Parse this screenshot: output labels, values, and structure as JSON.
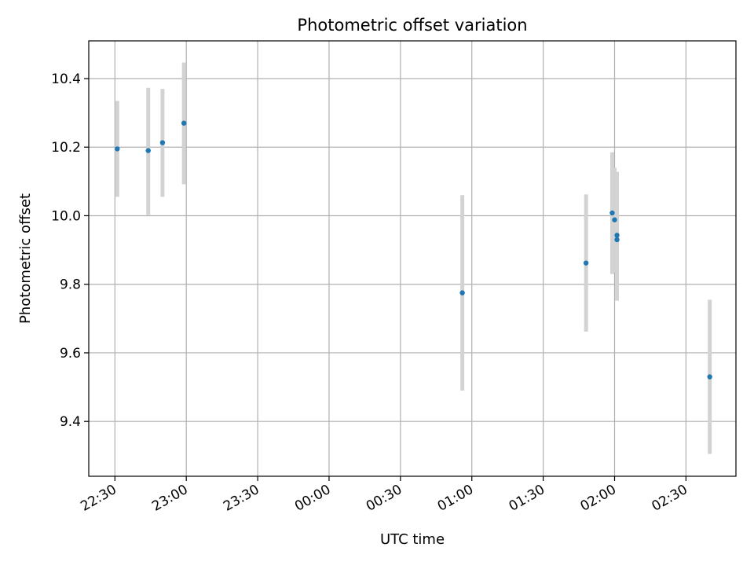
{
  "chart_data": {
    "type": "scatter",
    "title": "Photometric offset variation",
    "xlabel": "UTC time",
    "ylabel": "Photometric offset",
    "x_axis_kind": "time",
    "xlim": [
      "22:19",
      "02:51"
    ],
    "ylim": [
      9.24,
      10.51
    ],
    "grid": true,
    "x_ticks": [
      "22:30",
      "23:00",
      "23:30",
      "00:00",
      "00:30",
      "01:00",
      "01:30",
      "02:00",
      "02:30"
    ],
    "y_ticks": [
      "9.4",
      "9.6",
      "9.8",
      "10.0",
      "10.2",
      "10.4"
    ],
    "point_color": "#1f77b4",
    "errorbar_color": "#d3d3d3",
    "points": [
      {
        "time": "22:31",
        "y": 10.195,
        "y_low": 10.055,
        "y_high": 10.335
      },
      {
        "time": "22:44",
        "y": 10.19,
        "y_low": 10.002,
        "y_high": 10.373
      },
      {
        "time": "22:50",
        "y": 10.213,
        "y_low": 10.055,
        "y_high": 10.37
      },
      {
        "time": "22:59",
        "y": 10.27,
        "y_low": 10.092,
        "y_high": 10.447
      },
      {
        "time": "00:56",
        "y": 9.775,
        "y_low": 9.49,
        "y_high": 10.06
      },
      {
        "time": "01:48",
        "y": 9.862,
        "y_low": 9.662,
        "y_high": 10.062
      },
      {
        "time": "01:59",
        "y": 10.008,
        "y_low": 9.83,
        "y_high": 10.185
      },
      {
        "time": "02:00",
        "y": 9.988,
        "y_low": 9.835,
        "y_high": 10.14
      },
      {
        "time": "02:01",
        "y": 9.943,
        "y_low": 9.835,
        "y_high": 10.128
      },
      {
        "time": "02:01",
        "y": 9.93,
        "y_low": 9.752,
        "y_high": 10.11
      },
      {
        "time": "02:40",
        "y": 9.53,
        "y_low": 9.305,
        "y_high": 9.755
      }
    ]
  }
}
